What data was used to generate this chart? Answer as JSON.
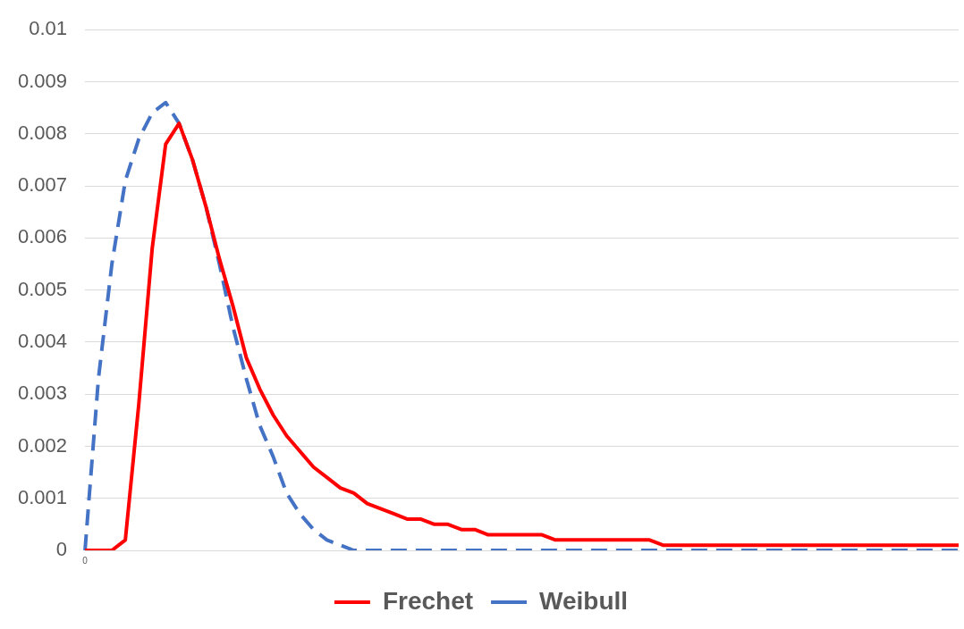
{
  "chart_data": {
    "type": "line",
    "categories": [
      "0",
      null,
      null,
      null,
      null,
      null,
      null,
      null,
      null,
      null,
      null,
      null,
      null,
      null,
      null,
      null,
      null,
      null,
      null,
      null,
      null,
      null,
      null,
      null,
      null,
      null,
      null,
      null,
      null,
      null,
      null,
      null,
      null,
      null,
      null,
      null,
      null,
      null,
      null,
      null,
      null,
      null,
      null,
      null,
      null,
      null,
      null,
      null,
      null,
      null,
      null,
      null,
      null,
      null,
      null,
      null,
      null,
      null,
      null,
      null,
      null,
      null,
      null,
      null,
      null,
      null
    ],
    "series": [
      {
        "name": "Frechet",
        "color": "#ff0000",
        "line_style": "solid",
        "values": [
          0,
          0,
          0,
          0.0002,
          0.0028,
          0.0058,
          0.0078,
          0.0082,
          0.0075,
          0.0066,
          0.0056,
          0.0047,
          0.0037,
          0.0031,
          0.0026,
          0.0022,
          0.0019,
          0.0016,
          0.0014,
          0.0012,
          0.0011,
          0.0009,
          0.0008,
          0.0007,
          0.0006,
          0.0006,
          0.0005,
          0.0005,
          0.0004,
          0.0004,
          0.0003,
          0.0003,
          0.0003,
          0.0003,
          0.0003,
          0.0002,
          0.0002,
          0.0002,
          0.0002,
          0.0002,
          0.0002,
          0.0002,
          0.0002,
          0.0001,
          0.0001,
          0.0001,
          0.0001,
          0.0001,
          0.0001,
          0.0001,
          0.0001,
          0.0001,
          0.0001,
          0.0001,
          0.0001,
          0.0001,
          0.0001,
          0.0001,
          0.0001,
          0.0001,
          0.0001,
          0.0001,
          0.0001,
          0.0001,
          0.0001,
          0.0001
        ]
      },
      {
        "name": "Weibull",
        "color": "#4472c4",
        "line_style": "dashed",
        "values": [
          0,
          0.0033,
          0.0055,
          0.0071,
          0.0079,
          0.0084,
          0.0086,
          0.0082,
          0.0075,
          0.0066,
          0.0055,
          0.0043,
          0.0033,
          0.0024,
          0.0018,
          0.0011,
          0.0007,
          0.0004,
          0.0002,
          0.0001,
          0,
          0,
          0,
          0,
          0,
          0,
          0,
          0,
          0,
          0,
          0,
          0,
          0,
          0,
          0,
          0,
          0,
          0,
          0,
          0,
          0,
          0,
          0,
          0,
          0,
          0,
          0,
          0,
          0,
          0,
          0,
          0,
          0,
          0,
          0,
          0,
          0,
          0,
          0,
          0,
          0,
          0,
          0,
          0,
          0,
          0
        ]
      }
    ],
    "ylim": [
      0,
      0.01
    ],
    "yticks": [
      0,
      0.001,
      0.002,
      0.003,
      0.004,
      0.005,
      0.006,
      0.007,
      0.008,
      0.009,
      0.01
    ],
    "grid": "y",
    "legend": "bottom",
    "marker": "none"
  }
}
